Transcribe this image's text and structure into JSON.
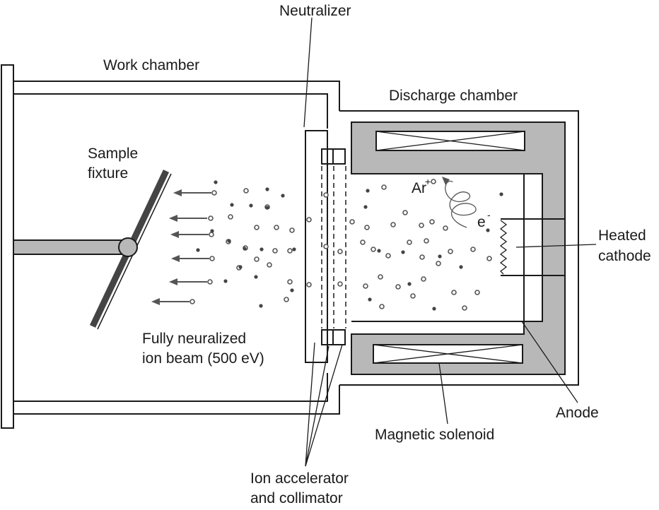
{
  "labels": {
    "neutralizer": "Neutralizer",
    "work_chamber": "Work chamber",
    "discharge_chamber": "Discharge chamber",
    "sample_fixture_line1": "Sample",
    "sample_fixture_line2": "fixture",
    "beam_line1": "Fully neuralized",
    "beam_line2": "ion beam (500 eV)",
    "ion": "Ar",
    "ion_charge": "+",
    "electron": "e",
    "electron_charge": "-",
    "cathode_line1": "Heated",
    "cathode_line2": "cathode",
    "anode": "Anode",
    "solenoid": "Magnetic solenoid",
    "accelerator_line1": "Ion accelerator",
    "accelerator_line2": "and collimator"
  },
  "colors": {
    "outline": "#1a1a1a",
    "solenoid_fill": "#b8b8b8",
    "beam_arrows": "#555555",
    "neutral_particle": "#444444"
  }
}
